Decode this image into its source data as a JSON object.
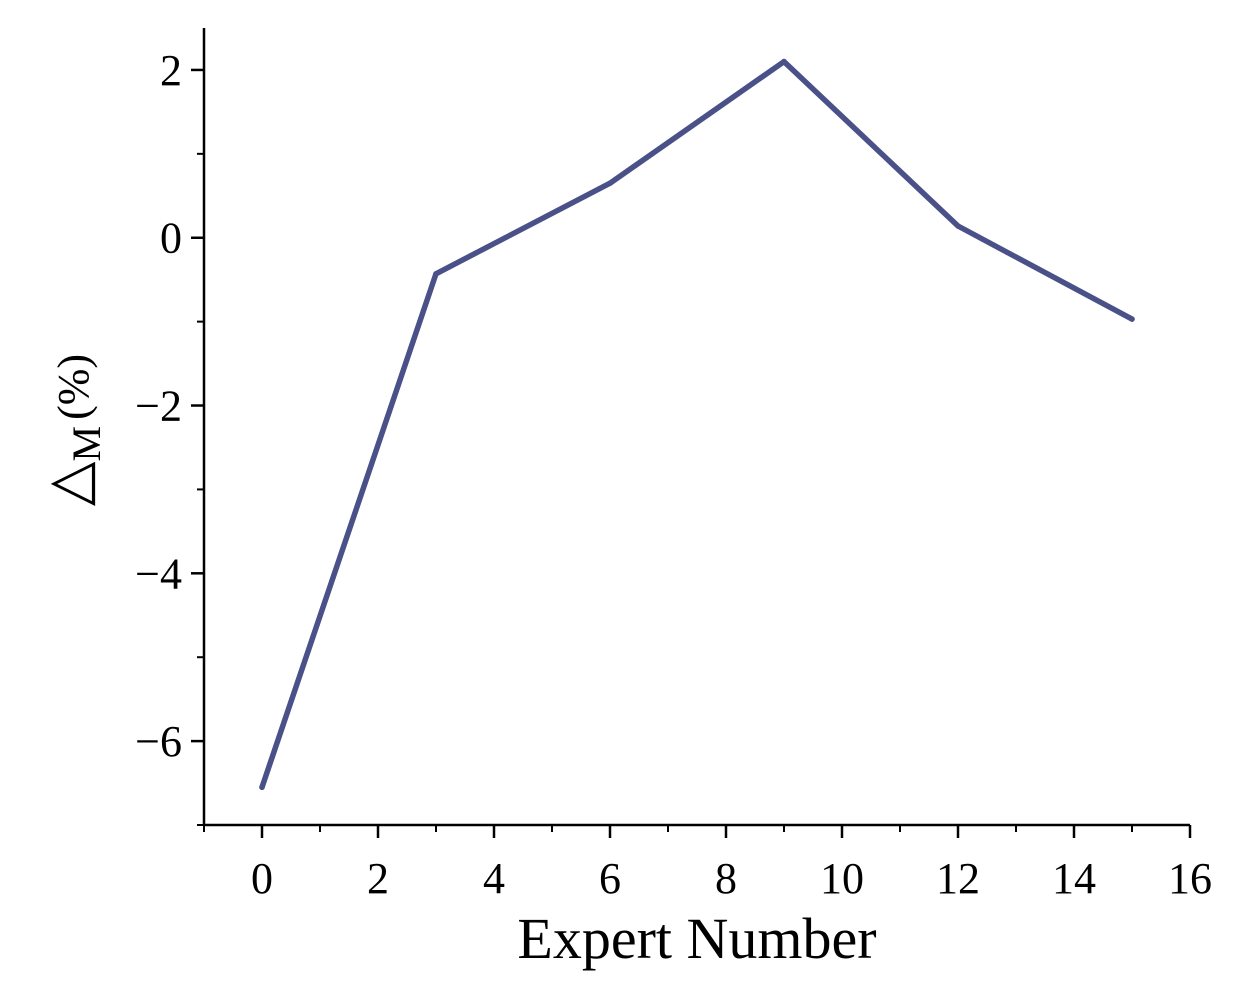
{
  "chart_data": {
    "type": "line",
    "xlabel": "Expert Number",
    "ylabel_symbol": "△",
    "ylabel_subscript": "M",
    "ylabel_unit": "(%)",
    "xlim": [
      -1,
      16
    ],
    "ylim": [
      -7,
      2.5
    ],
    "x_ticks": [
      0,
      2,
      4,
      6,
      8,
      10,
      12,
      14,
      16
    ],
    "y_ticks": [
      -6,
      -4,
      -2,
      0,
      2
    ],
    "x_tick_labels": [
      "0",
      "2",
      "4",
      "6",
      "8",
      "10",
      "12",
      "14",
      "16"
    ],
    "y_tick_labels": [
      "−6",
      "−4",
      "−2",
      "0",
      "2"
    ],
    "x_minor_step": 1,
    "y_minor_step": 1,
    "grid": false,
    "legend": "none",
    "series": [
      {
        "x": [
          0,
          3,
          6,
          9,
          12,
          15
        ],
        "values": [
          -6.55,
          -0.43,
          0.65,
          2.1,
          0.14,
          -0.97
        ],
        "color": "#4a5188"
      }
    ]
  }
}
